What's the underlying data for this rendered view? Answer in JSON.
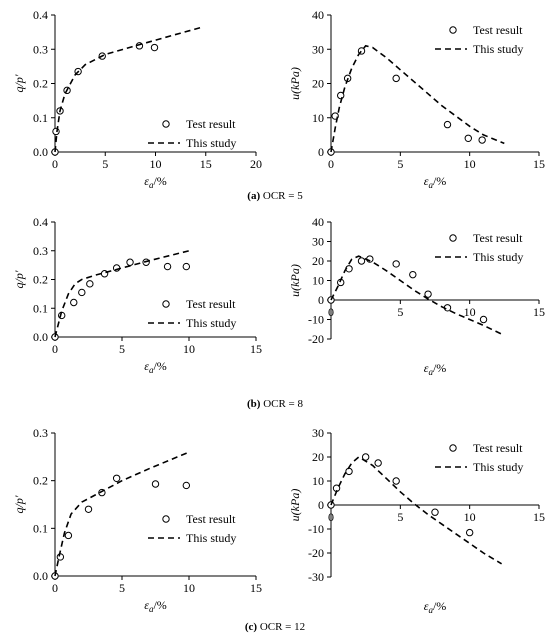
{
  "captions": [
    {
      "letter": "(a)",
      "text": "OCR = 5"
    },
    {
      "letter": "(b)",
      "text": "OCR = 8"
    },
    {
      "letter": "(c)",
      "text": "OCR = 12"
    }
  ],
  "chart_data": [
    {
      "type": "scatter",
      "panel": "a-left",
      "xlabel": "εa/%",
      "ylabel": "q/p′",
      "xlim": [
        0,
        20
      ],
      "ylim": [
        0,
        0.4
      ],
      "xticks": [
        0,
        5,
        10,
        15,
        20
      ],
      "yticks": [
        0,
        0.1,
        0.2,
        0.3,
        0.4
      ],
      "legend": "bottom-right",
      "series": [
        {
          "name": "Test result",
          "marker": "circle",
          "x": [
            0,
            0.1,
            0.5,
            1.2,
            2.3,
            4.7,
            8.4,
            9.9
          ],
          "y": [
            0,
            0.06,
            0.12,
            0.18,
            0.235,
            0.28,
            0.31,
            0.305
          ]
        },
        {
          "name": "This study",
          "line": "dashed",
          "x": [
            0,
            0.2,
            0.5,
            1.0,
            2.0,
            3.0,
            5.0,
            8.0,
            11.0,
            14.7
          ],
          "y": [
            0,
            0.06,
            0.12,
            0.17,
            0.225,
            0.255,
            0.285,
            0.31,
            0.335,
            0.365
          ]
        }
      ]
    },
    {
      "type": "scatter",
      "panel": "a-right",
      "xlabel": "εa/%",
      "ylabel": "u(kPa)",
      "xlim": [
        0,
        15
      ],
      "ylim": [
        0,
        40
      ],
      "xticks": [
        0,
        5,
        10,
        15
      ],
      "yticks": [
        0,
        10,
        20,
        30,
        40
      ],
      "legend": "top-right",
      "series": [
        {
          "name": "Test result",
          "marker": "circle",
          "x": [
            0,
            0.3,
            0.7,
            1.2,
            2.2,
            4.7,
            8.4,
            9.9,
            10.9
          ],
          "y": [
            0,
            10.5,
            16.5,
            21.5,
            29.5,
            21.5,
            8,
            4,
            3.5
          ]
        },
        {
          "name": "This study",
          "line": "dashed",
          "x": [
            0,
            0.3,
            0.6,
            1.0,
            1.5,
            2.0,
            2.5,
            3.0,
            4.0,
            5.0,
            6.0,
            7.0,
            8.0,
            9.0,
            10.0,
            11.0,
            12.5
          ],
          "y": [
            0,
            7,
            13,
            19,
            24.5,
            28.5,
            31,
            30.5,
            27.5,
            24,
            20.5,
            17,
            13.5,
            10.5,
            7.5,
            5,
            2.5
          ]
        }
      ]
    },
    {
      "type": "scatter",
      "panel": "b-left",
      "xlabel": "εa/%",
      "ylabel": "q/p′",
      "xlim": [
        0,
        15
      ],
      "ylim": [
        0,
        0.4
      ],
      "xticks": [
        0,
        5,
        10,
        15
      ],
      "yticks": [
        0,
        0.1,
        0.2,
        0.3,
        0.4
      ],
      "legend": "bottom-right",
      "series": [
        {
          "name": "Test result",
          "marker": "circle",
          "x": [
            0,
            0.5,
            1.4,
            2.0,
            2.6,
            3.7,
            4.6,
            5.6,
            6.8,
            8.4,
            9.8
          ],
          "y": [
            0,
            0.075,
            0.12,
            0.155,
            0.185,
            0.22,
            0.24,
            0.26,
            0.26,
            0.245,
            0.245
          ]
        },
        {
          "name": "This study",
          "line": "dashed",
          "x": [
            0,
            0.5,
            1.0,
            1.5,
            2.0,
            3.0,
            5.0,
            7.0,
            10.0
          ],
          "y": [
            0,
            0.09,
            0.15,
            0.185,
            0.2,
            0.215,
            0.24,
            0.265,
            0.3
          ]
        }
      ]
    },
    {
      "type": "scatter",
      "panel": "b-right",
      "xlabel": "εa/%",
      "ylabel": "u(kPa)",
      "xlim": [
        0,
        15
      ],
      "ylim": [
        -20,
        40
      ],
      "xticks": [
        0,
        5,
        10,
        15
      ],
      "yticks": [
        -20,
        -10,
        0,
        10,
        20,
        30,
        40
      ],
      "legend": "top-right",
      "series": [
        {
          "name": "Test result",
          "marker": "circle",
          "x": [
            0,
            0.7,
            1.3,
            2.2,
            2.8,
            4.7,
            5.9,
            7.0,
            8.4,
            11.0
          ],
          "y": [
            0,
            9,
            16,
            20,
            21,
            18.5,
            13,
            3,
            -4,
            -10
          ]
        },
        {
          "name": "This study",
          "line": "dashed",
          "x": [
            0,
            0.5,
            1.0,
            1.5,
            2.0,
            3.0,
            4.0,
            5.0,
            6.0,
            7.0,
            8.0,
            9.0,
            10.0,
            11.0,
            12.3
          ],
          "y": [
            0,
            7,
            15,
            21,
            22.5,
            19.5,
            15,
            10,
            5,
            0.5,
            -3.5,
            -7,
            -10,
            -13,
            -17.5
          ]
        }
      ]
    },
    {
      "type": "scatter",
      "panel": "c-left",
      "xlabel": "εa/%",
      "ylabel": "q/p′",
      "xlim": [
        0,
        15
      ],
      "ylim": [
        0,
        0.3
      ],
      "xticks": [
        0,
        5,
        10,
        15
      ],
      "yticks": [
        0,
        0.1,
        0.2,
        0.3
      ],
      "legend": "bottom-right",
      "series": [
        {
          "name": "Test result",
          "marker": "circle",
          "x": [
            0,
            0.4,
            1.0,
            2.5,
            3.5,
            4.6,
            7.5,
            9.8
          ],
          "y": [
            0,
            0.04,
            0.085,
            0.14,
            0.175,
            0.205,
            0.193,
            0.19
          ]
        },
        {
          "name": "This study",
          "line": "dashed",
          "x": [
            0,
            0.3,
            0.7,
            1.2,
            2.0,
            3.0,
            5.0,
            7.0,
            10.0
          ],
          "y": [
            0,
            0.04,
            0.09,
            0.13,
            0.155,
            0.17,
            0.2,
            0.225,
            0.26
          ]
        }
      ]
    },
    {
      "type": "scatter",
      "panel": "c-right",
      "xlabel": "εa/%",
      "ylabel": "u(kPa)",
      "xlim": [
        0,
        15
      ],
      "ylim": [
        -30,
        30
      ],
      "xticks": [
        0,
        5,
        10,
        15
      ],
      "yticks": [
        -30,
        -20,
        -10,
        0,
        10,
        20,
        30
      ],
      "legend": "top-right",
      "series": [
        {
          "name": "Test result",
          "marker": "circle",
          "x": [
            0,
            0.4,
            1.3,
            2.5,
            3.4,
            4.7,
            7.5,
            10.0
          ],
          "y": [
            0,
            7,
            14,
            20,
            17.5,
            10,
            -3,
            -11.5
          ]
        },
        {
          "name": "This study",
          "line": "dashed",
          "x": [
            0,
            0.5,
            1.0,
            1.5,
            2.0,
            3.0,
            4.0,
            5.0,
            6.0,
            7.0,
            8.0,
            9.0,
            10.0,
            11.0,
            12.3
          ],
          "y": [
            0,
            7,
            13,
            17.5,
            20,
            16.5,
            11,
            5.5,
            0.5,
            -4,
            -8,
            -12,
            -16,
            -20,
            -24.5
          ]
        }
      ]
    }
  ]
}
